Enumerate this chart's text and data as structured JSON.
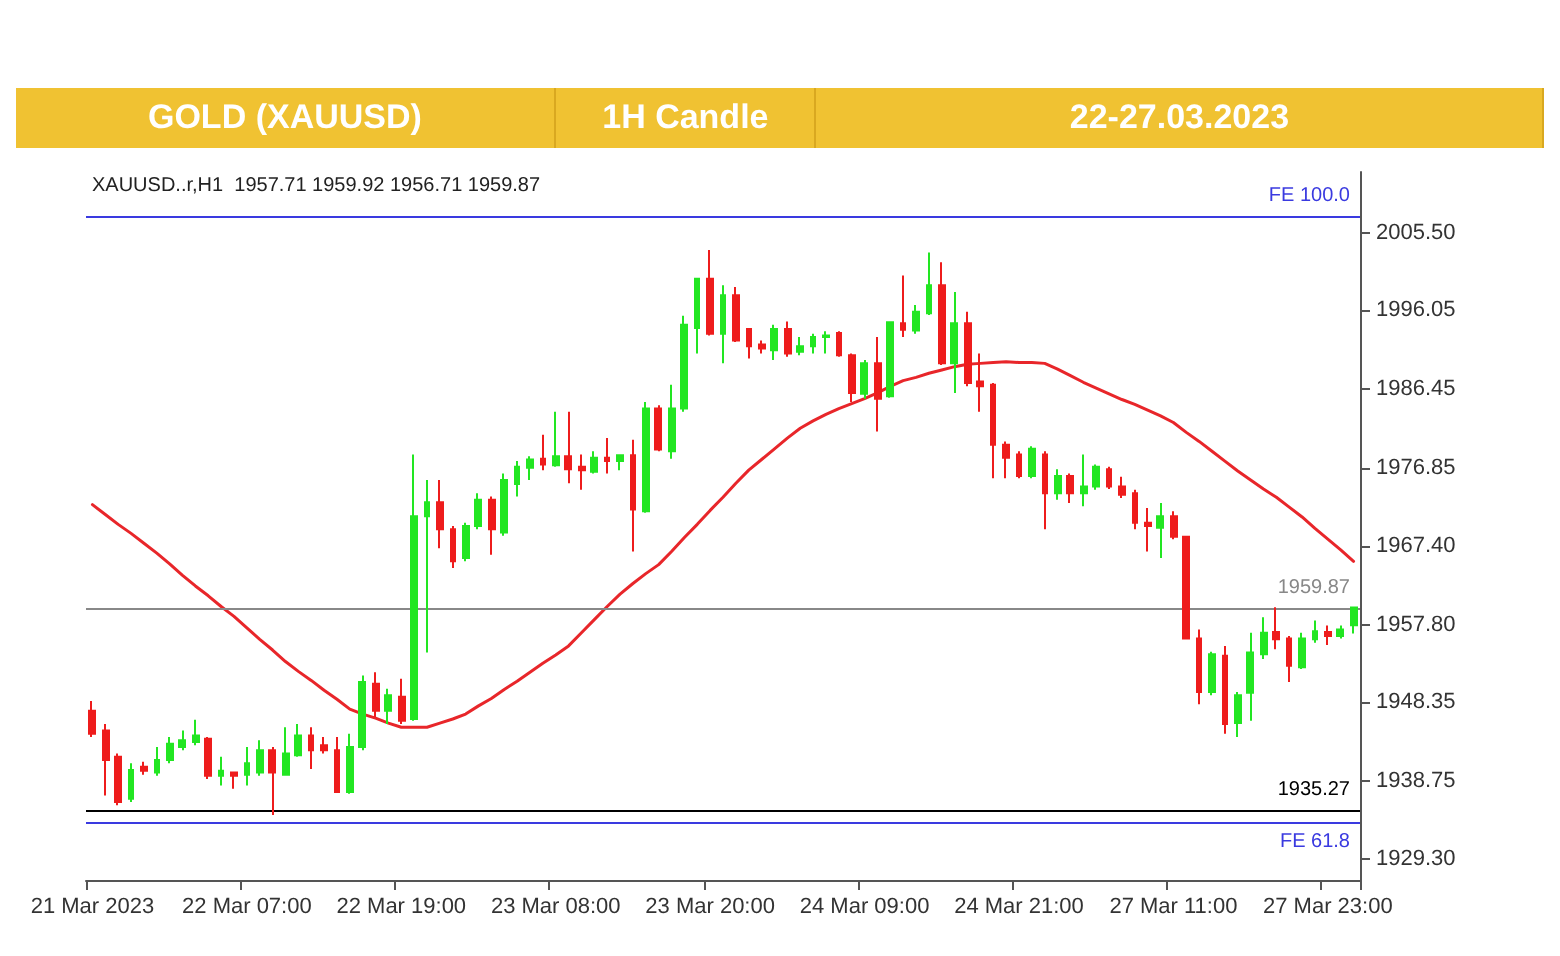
{
  "chart_data": {
    "type": "candlestick",
    "title": "GOLD (XAUUSD)",
    "subtitle": "1H Candle",
    "annotations": [
      "22-27.03.2023",
      "XAUUSD..r,H1  1957.71 1959.92 1956.71 1959.87"
    ],
    "categories": [
      "21 Mar 2023",
      null,
      null,
      null,
      null,
      null,
      null,
      null,
      null,
      null,
      null,
      null,
      "22 Mar 07:00",
      null,
      null,
      null,
      null,
      null,
      null,
      null,
      null,
      null,
      null,
      null,
      "22 Mar 19:00",
      null,
      null,
      null,
      null,
      null,
      null,
      null,
      null,
      null,
      null,
      null,
      "23 Mar 08:00",
      null,
      null,
      null,
      null,
      null,
      null,
      null,
      null,
      null,
      null,
      null,
      "23 Mar 20:00",
      null,
      null,
      null,
      null,
      null,
      null,
      null,
      null,
      null,
      null,
      null,
      "24 Mar 09:00",
      null,
      null,
      null,
      null,
      null,
      null,
      null,
      null,
      null,
      null,
      null,
      "24 Mar 21:00",
      null,
      null,
      null,
      null,
      null,
      null,
      null,
      null,
      null,
      null,
      null,
      "27 Mar 11:00",
      null,
      null,
      null,
      null,
      null,
      null,
      null,
      null,
      null,
      null,
      null,
      "27 Mar 23:00",
      null,
      null
    ],
    "ohlc": [
      [
        1947.3,
        1948.5,
        1944.1,
        1944.5
      ],
      [
        1944.9,
        1945.7,
        1937.0,
        1941.3
      ],
      [
        1941.7,
        1942.1,
        1935.8,
        1936.2
      ],
      [
        1936.6,
        1940.9,
        1936.2,
        1940.1
      ],
      [
        1940.5,
        1941.1,
        1939.5,
        1940.0
      ],
      [
        1939.8,
        1942.9,
        1939.4,
        1941.3
      ],
      [
        1941.3,
        1944.1,
        1940.9,
        1943.3
      ],
      [
        1942.9,
        1944.9,
        1942.5,
        1943.7
      ],
      [
        1943.5,
        1946.2,
        1943.1,
        1944.3
      ],
      [
        1943.9,
        1944.1,
        1939.0,
        1939.4
      ],
      [
        1939.4,
        1941.7,
        1938.2,
        1940.0
      ],
      [
        1939.8,
        1939.8,
        1937.8,
        1939.4
      ],
      [
        1939.5,
        1942.9,
        1938.2,
        1940.9
      ],
      [
        1939.8,
        1943.7,
        1939.4,
        1942.5
      ],
      [
        1942.5,
        1942.9,
        1934.6,
        1939.8
      ],
      [
        1939.5,
        1945.3,
        1939.4,
        1942.1
      ],
      [
        1941.9,
        1945.7,
        1941.7,
        1944.3
      ],
      [
        1944.3,
        1945.3,
        1940.2,
        1942.5
      ],
      [
        1943.1,
        1944.1,
        1942.1,
        1942.5
      ],
      [
        1942.5,
        1944.1,
        1937.4,
        1937.4
      ],
      [
        1937.4,
        1944.5,
        1937.2,
        1942.9
      ],
      [
        1942.9,
        1951.6,
        1942.5,
        1950.8
      ],
      [
        1950.6,
        1952.0,
        1946.5,
        1947.3
      ],
      [
        1947.3,
        1950.0,
        1945.7,
        1949.2
      ],
      [
        1949.0,
        1951.2,
        1945.7,
        1946.1
      ],
      [
        1946.3,
        1978.5,
        1946.1,
        1971.0
      ],
      [
        1971.0,
        1975.4,
        1954.4,
        1972.7
      ],
      [
        1972.7,
        1975.4,
        1967.1,
        1969.4
      ],
      [
        1969.4,
        1969.8,
        1964.7,
        1965.5
      ],
      [
        1965.9,
        1970.2,
        1965.5,
        1969.8
      ],
      [
        1969.8,
        1973.8,
        1969.4,
        1973.0
      ],
      [
        1973.0,
        1973.4,
        1966.3,
        1969.4
      ],
      [
        1969.0,
        1976.2,
        1968.6,
        1975.4
      ],
      [
        1974.9,
        1977.7,
        1973.4,
        1977.0
      ],
      [
        1976.9,
        1978.3,
        1975.4,
        1977.9
      ],
      [
        1978.0,
        1980.9,
        1976.6,
        1977.3
      ],
      [
        1977.2,
        1983.7,
        1977.0,
        1978.3
      ],
      [
        1978.3,
        1983.7,
        1975.0,
        1976.7
      ],
      [
        1977.0,
        1978.5,
        1974.2,
        1976.6
      ],
      [
        1976.4,
        1978.9,
        1976.2,
        1978.1
      ],
      [
        1978.1,
        1980.5,
        1976.2,
        1977.7
      ],
      [
        1977.7,
        1978.5,
        1976.6,
        1978.4
      ],
      [
        1978.4,
        1980.3,
        1966.7,
        1971.8
      ],
      [
        1971.6,
        1984.9,
        1971.4,
        1984.1
      ],
      [
        1984.1,
        1984.5,
        1978.9,
        1979.1
      ],
      [
        1978.9,
        1987.0,
        1978.0,
        1984.1
      ],
      [
        1984.1,
        1995.4,
        1983.7,
        1994.3
      ],
      [
        1993.9,
        1999.9,
        1990.8,
        1999.9
      ],
      [
        1999.9,
        2003.4,
        1993.0,
        1993.2
      ],
      [
        1993.2,
        1999.1,
        1989.6,
        1997.9
      ],
      [
        1997.9,
        1998.9,
        1992.2,
        1992.4
      ],
      [
        1993.8,
        1993.9,
        1990.2,
        1991.7
      ],
      [
        1991.9,
        1992.4,
        1990.8,
        1991.4
      ],
      [
        1991.2,
        1994.3,
        1990.0,
        1993.8
      ],
      [
        1993.8,
        1994.7,
        1990.4,
        1990.8
      ],
      [
        1991.0,
        1992.8,
        1990.6,
        1991.7
      ],
      [
        1991.7,
        1993.2,
        1990.8,
        1992.8
      ],
      [
        1992.8,
        1993.5,
        1990.8,
        1993.0
      ],
      [
        1993.3,
        1993.5,
        1990.4,
        1990.6
      ],
      [
        1990.6,
        1990.8,
        1984.9,
        1986.0
      ],
      [
        1985.9,
        1990.0,
        1985.3,
        1989.6
      ],
      [
        1989.6,
        1992.8,
        1981.3,
        1985.3
      ],
      [
        1985.6,
        1994.7,
        1985.4,
        1994.6
      ],
      [
        1994.5,
        2000.3,
        1992.8,
        1993.7
      ],
      [
        1993.6,
        1996.7,
        1993.2,
        1995.9
      ],
      [
        1995.7,
        2003.1,
        1995.5,
        1999.1
      ],
      [
        1999.1,
        2001.9,
        1989.4,
        1989.6
      ],
      [
        1989.6,
        1998.3,
        1986.0,
        1994.5
      ],
      [
        1994.5,
        1995.9,
        1986.8,
        1987.2
      ],
      [
        1987.4,
        1990.8,
        1983.7,
        1986.8
      ],
      [
        1987.0,
        1987.2,
        1975.6,
        1979.7
      ],
      [
        1979.7,
        1980.1,
        1975.6,
        1978.1
      ],
      [
        1978.5,
        1978.9,
        1975.6,
        1975.9
      ],
      [
        1975.9,
        1979.5,
        1975.6,
        1979.2
      ],
      [
        1978.5,
        1978.9,
        1969.4,
        1973.8
      ],
      [
        1973.8,
        1976.7,
        1973.0,
        1975.9
      ],
      [
        1975.9,
        1976.2,
        1972.6,
        1973.8
      ],
      [
        1973.8,
        1978.5,
        1972.2,
        1974.6
      ],
      [
        1974.6,
        1977.3,
        1974.2,
        1977.0
      ],
      [
        1976.7,
        1977.0,
        1974.3,
        1974.6
      ],
      [
        1974.6,
        1975.8,
        1973.2,
        1973.6
      ],
      [
        1973.8,
        1974.2,
        1969.4,
        1970.2
      ],
      [
        1970.2,
        1972.0,
        1966.7,
        1969.8
      ],
      [
        1969.6,
        1972.6,
        1965.9,
        1971.0
      ],
      [
        1971.0,
        1971.6,
        1968.2,
        1968.5
      ],
      [
        1968.5,
        1968.6,
        1956.0,
        1956.1
      ],
      [
        1956.1,
        1957.2,
        1948.1,
        1949.6
      ],
      [
        1949.6,
        1954.5,
        1949.2,
        1954.2
      ],
      [
        1954.0,
        1955.2,
        1944.5,
        1945.7
      ],
      [
        1945.8,
        1949.6,
        1944.1,
        1949.2
      ],
      [
        1949.5,
        1956.8,
        1946.1,
        1954.4
      ],
      [
        1954.2,
        1958.7,
        1953.6,
        1956.8
      ],
      [
        1956.9,
        1959.9,
        1954.8,
        1956.0
      ],
      [
        1956.1,
        1956.4,
        1950.8,
        1952.8
      ],
      [
        1952.6,
        1956.8,
        1952.4,
        1956.1
      ],
      [
        1956.0,
        1958.3,
        1955.6,
        1957.0
      ],
      [
        1956.9,
        1957.7,
        1955.3,
        1956.4
      ],
      [
        1956.4,
        1957.7,
        1956.1,
        1957.2
      ],
      [
        1957.71,
        1959.92,
        1956.71,
        1959.87
      ]
    ],
    "colors": [
      "#ee1c1c",
      "#ee1c1c",
      "#ee1c1c",
      "#22e622",
      "#ee1c1c",
      "#22e622",
      "#22e622",
      "#22e622",
      "#22e622",
      "#ee1c1c",
      "#22e622",
      "#ee1c1c",
      "#22e622",
      "#22e622",
      "#ee1c1c",
      "#22e622",
      "#22e622",
      "#ee1c1c",
      "#ee1c1c",
      "#ee1c1c",
      "#22e622",
      "#22e622",
      "#ee1c1c",
      "#22e622",
      "#ee1c1c",
      "#22e622",
      "#22e622",
      "#ee1c1c",
      "#ee1c1c",
      "#22e622",
      "#22e622",
      "#ee1c1c",
      "#22e622",
      "#22e622",
      "#22e622",
      "#ee1c1c",
      "#22e622",
      "#ee1c1c",
      "#ee1c1c",
      "#22e622",
      "#ee1c1c",
      "#22e622",
      "#ee1c1c",
      "#22e622",
      "#ee1c1c",
      "#22e622",
      "#22e622",
      "#22e622",
      "#ee1c1c",
      "#22e622",
      "#ee1c1c",
      "#ee1c1c",
      "#ee1c1c",
      "#22e622",
      "#ee1c1c",
      "#22e622",
      "#22e622",
      "#22e622",
      "#ee1c1c",
      "#ee1c1c",
      "#22e622",
      "#ee1c1c",
      "#22e622",
      "#ee1c1c",
      "#22e622",
      "#22e622",
      "#ee1c1c",
      "#22e622",
      "#ee1c1c",
      "#ee1c1c",
      "#ee1c1c",
      "#ee1c1c",
      "#ee1c1c",
      "#22e622",
      "#ee1c1c",
      "#22e622",
      "#ee1c1c",
      "#22e622",
      "#22e622",
      "#ee1c1c",
      "#ee1c1c",
      "#ee1c1c",
      "#ee1c1c",
      "#22e622",
      "#ee1c1c",
      "#ee1c1c",
      "#ee1c1c",
      "#22e622",
      "#ee1c1c",
      "#22e622",
      "#22e622",
      "#22e622",
      "#ee1c1c",
      "#ee1c1c",
      "#22e622",
      "#22e622",
      "#ee1c1c",
      "#22e622",
      "#22e622"
    ],
    "series": [
      {
        "type": "line",
        "color": "#e8262a",
        "values": [
          1972.4,
          1971.2,
          1970.0,
          1968.9,
          1967.7,
          1966.5,
          1965.2,
          1963.8,
          1962.5,
          1961.3,
          1960.0,
          1958.8,
          1957.4,
          1956.0,
          1954.7,
          1953.3,
          1952.1,
          1951.0,
          1949.8,
          1948.7,
          1947.5,
          1946.9,
          1946.4,
          1945.8,
          1945.3,
          1945.3,
          1945.3,
          1945.8,
          1946.3,
          1946.9,
          1947.9,
          1948.8,
          1949.9,
          1950.9,
          1952.0,
          1953.1,
          1954.1,
          1955.2,
          1956.8,
          1958.4,
          1960.0,
          1961.5,
          1962.8,
          1964.0,
          1965.1,
          1966.7,
          1968.4,
          1970.0,
          1971.7,
          1973.3,
          1975.0,
          1976.6,
          1977.9,
          1979.2,
          1980.5,
          1981.7,
          1982.6,
          1983.4,
          1984.1,
          1984.7,
          1985.3,
          1986.0,
          1986.8,
          1987.5,
          1987.9,
          1988.4,
          1988.8,
          1989.2,
          1989.5,
          1989.6,
          1989.7,
          1989.8,
          1989.7,
          1989.7,
          1989.6,
          1988.9,
          1988.1,
          1987.3,
          1986.6,
          1985.9,
          1985.2,
          1984.6,
          1983.9,
          1983.2,
          1982.4,
          1981.2,
          1980.1,
          1978.9,
          1977.7,
          1976.5,
          1975.4,
          1974.3,
          1973.3,
          1972.1,
          1970.9,
          1969.5,
          1968.2,
          1966.9,
          1965.5
        ]
      }
    ],
    "ylim": [
      1926.7,
      2012.9
    ],
    "yticks": [
      {
        "value": 1929.3,
        "label": "1929.30"
      },
      1938.75,
      1948.35,
      {
        "value": 1957.8,
        "label": "1957.80"
      },
      {
        "value": 1967.4,
        "label": "1967.40"
      },
      1976.85,
      1986.45,
      1996.05,
      {
        "value": 2005.5,
        "label": "2005.50"
      }
    ],
    "ref_lines": [
      {
        "axis": "y",
        "value": 2007.6,
        "label": "FE 100.0",
        "color": "#3a3ae0"
      },
      {
        "axis": "y",
        "value": 1933.8,
        "label": "FE 61.8",
        "color": "#3a3ae0"
      },
      {
        "axis": "y",
        "value": 1959.87,
        "label": "1959.87",
        "color": "#888888"
      },
      {
        "axis": "y",
        "value": 1935.27,
        "label": "1935.27",
        "color": "#000000"
      }
    ]
  }
}
